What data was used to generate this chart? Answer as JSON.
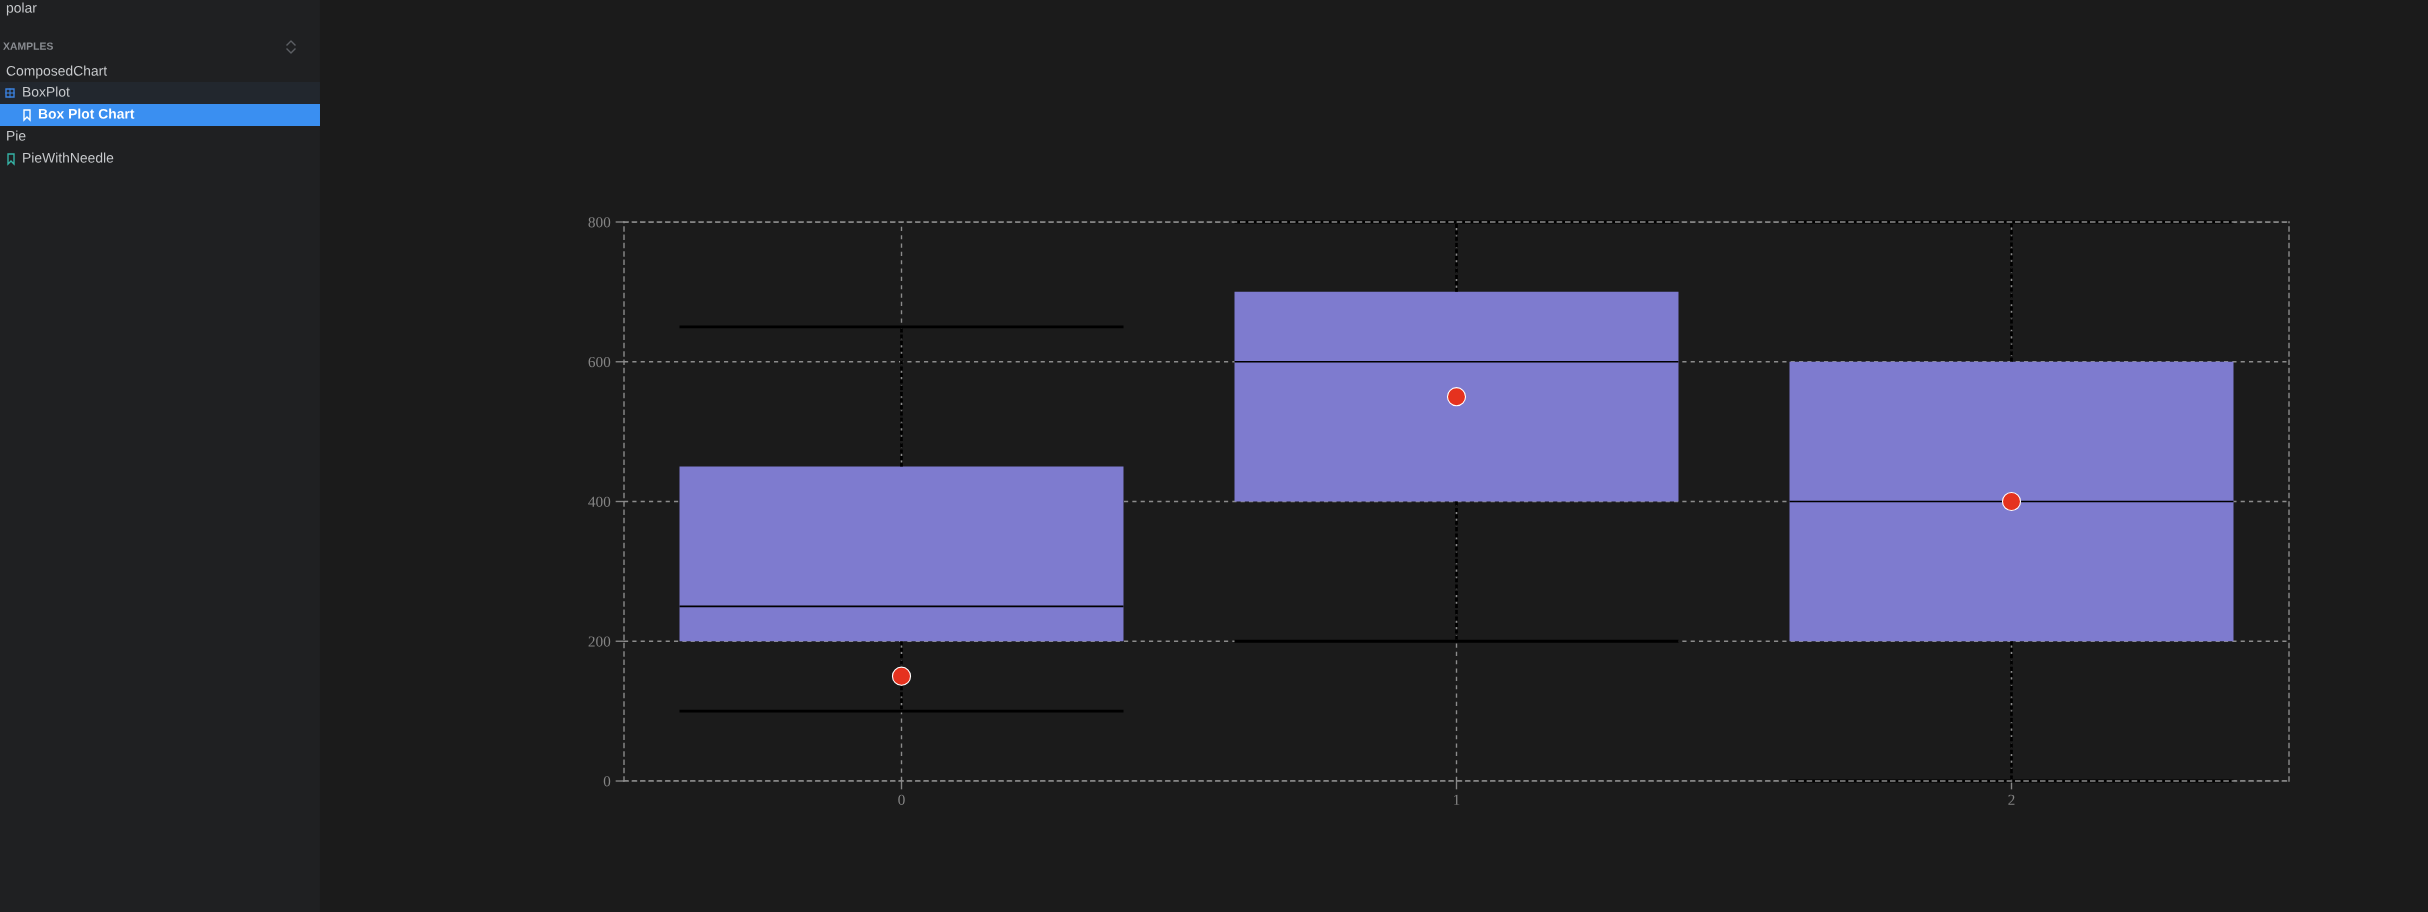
{
  "chart_data": {
    "type": "box",
    "categories": [
      "0",
      "1",
      "2"
    ],
    "series": [
      {
        "color": "#7e7bcf",
        "boxes": [
          {
            "low": 100,
            "q1": 200,
            "median": 250,
            "q3": 450,
            "high": 650,
            "mean": 150
          },
          {
            "low": 200,
            "q1": 400,
            "median": 600,
            "q3": 700,
            "high": 800,
            "mean": 550
          },
          {
            "low": 0,
            "q1": 200,
            "median": 400,
            "q3": 600,
            "high": 800,
            "mean": 400
          }
        ]
      }
    ],
    "ylim": [
      0,
      800
    ],
    "yticks": [
      0,
      200,
      400,
      600,
      800
    ],
    "grid": true,
    "annotations": [
      "polar",
      "XAMPLES",
      "ComposedChart",
      "BoxPlot",
      "Box Plot Chart",
      "Pie",
      "PieWithNeedle"
    ]
  }
}
